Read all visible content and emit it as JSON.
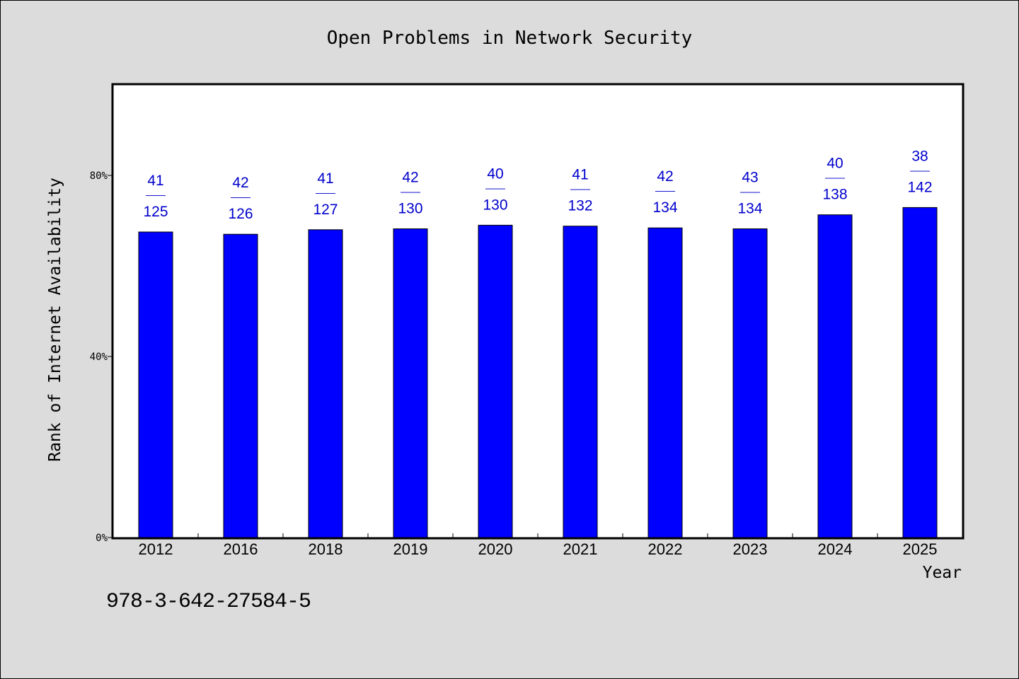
{
  "chart_data": {
    "type": "bar",
    "title": "Open Problems in Network Security",
    "xlabel": "Year",
    "ylabel": "Rank of Internet Availability",
    "categories": [
      "2012",
      "2016",
      "2018",
      "2019",
      "2020",
      "2021",
      "2022",
      "2023",
      "2024",
      "2025"
    ],
    "series": [
      {
        "values": [
          67.5,
          67.0,
          68.0,
          68.2,
          69.0,
          68.8,
          68.4,
          68.2,
          71.3,
          72.9
        ]
      }
    ],
    "data_labels": [
      {
        "top": "41",
        "bottom": "125"
      },
      {
        "top": "42",
        "bottom": "126"
      },
      {
        "top": "41",
        "bottom": "127"
      },
      {
        "top": "42",
        "bottom": "130"
      },
      {
        "top": "40",
        "bottom": "130"
      },
      {
        "top": "41",
        "bottom": "132"
      },
      {
        "top": "42",
        "bottom": "134"
      },
      {
        "top": "43",
        "bottom": "134"
      },
      {
        "top": "40",
        "bottom": "138"
      },
      {
        "top": "38",
        "bottom": "142"
      }
    ],
    "label_separator": "——",
    "ylim": [
      0,
      100
    ],
    "yticks": [
      0,
      40,
      80
    ],
    "ytick_labels": [
      "0%",
      "40%",
      "80%"
    ],
    "grid": false,
    "colors": {
      "bar": "#0000ff",
      "label": "#0000cc",
      "background": "#dcdcdc",
      "plot_background": "#ffffff"
    }
  },
  "footer": {
    "isbn": "978-3-642-27584-5"
  }
}
